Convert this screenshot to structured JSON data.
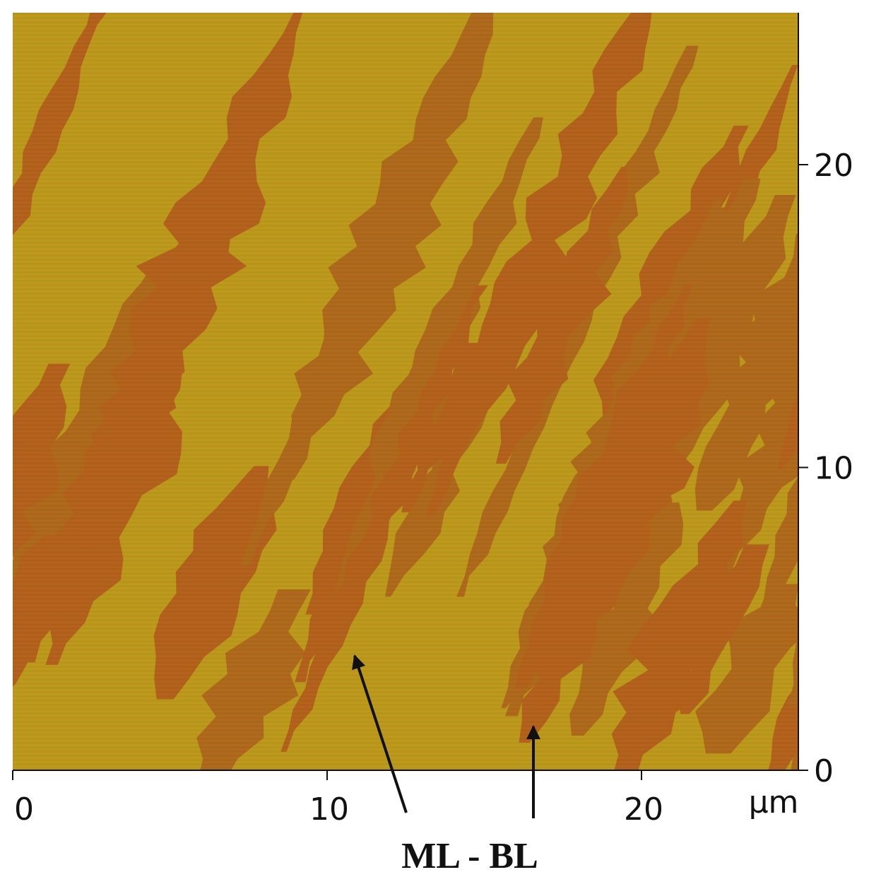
{
  "x_axis": {
    "ticks": [
      0,
      10,
      20
    ],
    "unit": "μm"
  },
  "y_axis": {
    "ticks": [
      0,
      10,
      20
    ]
  },
  "annotation": "ML - BL"
}
